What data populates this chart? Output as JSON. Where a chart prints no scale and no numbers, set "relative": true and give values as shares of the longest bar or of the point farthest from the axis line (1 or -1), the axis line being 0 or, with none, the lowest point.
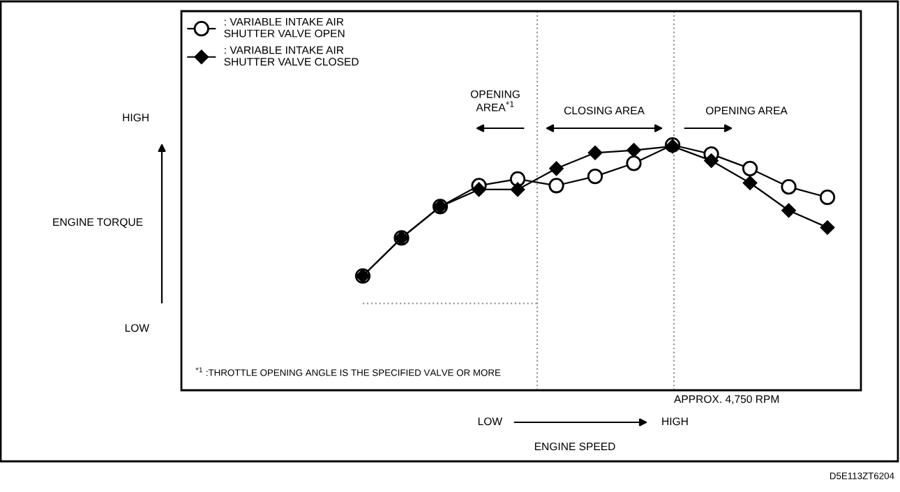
{
  "chart_data": {
    "type": "line",
    "relative": true,
    "categories": [
      null,
      null,
      null,
      null,
      null,
      null,
      null,
      null,
      null,
      null,
      null,
      null,
      null
    ],
    "series": [
      {
        "name": ": VARIABLE INTAKE AIR\nSHUTTER VALVE OPEN",
        "color": "#000000",
        "marker": "circle",
        "values": [
          0,
          0.29,
          0.53,
          0.69,
          0.74,
          0.69,
          0.76,
          0.86,
          1.0,
          0.93,
          0.82,
          0.68,
          0.6
        ]
      },
      {
        "name": ": VARIABLE INTAKE AIR\nSHUTTER VALVE CLOSED",
        "color": "#000000",
        "marker": "diamond",
        "values": [
          0,
          0.29,
          0.53,
          0.66,
          0.66,
          0.82,
          0.94,
          0.96,
          0.99,
          0.88,
          0.71,
          0.5,
          0.37
        ]
      }
    ],
    "ref_lines": [
      {
        "axis": "y",
        "value": -0.21,
        "color": "#999999",
        "line_style": "dotted"
      }
    ],
    "annotations": [
      "OPENING\nAREA$^{*1}$",
      "CLOSING AREA",
      "OPENING AREA",
      "HIGH",
      "LOW",
      "LOW",
      "HIGH",
      "$^{*1}$ :THROTTLE OPENING ANGLE IS THE SPECIFIED VALVE OR MORE",
      "D5E113ZT6204",
      "ENGINE TORQUE",
      "ENGINE SPEED",
      "APPROX. 4,750 RPM"
    ],
    "legend": "top left",
    "line_style": "solid"
  }
}
